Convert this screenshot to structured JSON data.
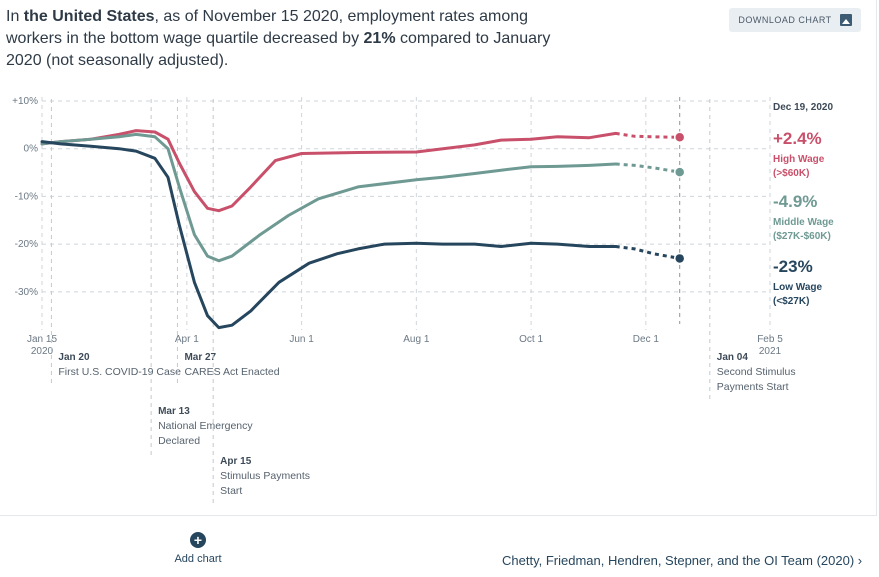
{
  "headline": {
    "prefix": "In ",
    "region": "the United States",
    "middle": ", as of November 15 2020, employment rates among workers in the bottom wage quartile decreased by ",
    "change": "21%",
    "suffix": " compared to January 2020 (not seasonally adjusted)."
  },
  "download_button": {
    "label": "DOWNLOAD CHART",
    "icon": "image-icon"
  },
  "chart_data": {
    "type": "line",
    "x_ticks": [
      {
        "date": "2020-01-15",
        "label": "Jan 15",
        "sub": "2020"
      },
      {
        "date": "2020-04-01",
        "label": "Apr 1",
        "sub": ""
      },
      {
        "date": "2020-06-01",
        "label": "Jun 1",
        "sub": ""
      },
      {
        "date": "2020-08-01",
        "label": "Aug 1",
        "sub": ""
      },
      {
        "date": "2020-10-01",
        "label": "Oct 1",
        "sub": ""
      },
      {
        "date": "2020-12-01",
        "label": "Dec 1",
        "sub": ""
      },
      {
        "date": "2021-02-05",
        "label": "Feb 5",
        "sub": "2021"
      }
    ],
    "y_ticks": [
      {
        "value": 10,
        "label": "+10%"
      },
      {
        "value": 0,
        "label": "0%"
      },
      {
        "value": -10,
        "label": "-10%"
      },
      {
        "value": -20,
        "label": "-20%"
      },
      {
        "value": -30,
        "label": "-30%"
      }
    ],
    "ylim": [
      -38,
      10
    ],
    "xlim": [
      "2020-01-15",
      "2021-02-05"
    ],
    "end_date_label": "Dec 19, 2020",
    "end_date": "2020-12-19",
    "series": [
      {
        "name": "High Wage",
        "detail": "(>$60K)",
        "end_value_label": "+2.4%",
        "color": "#c9506a",
        "points": [
          [
            "2020-01-15",
            1
          ],
          [
            "2020-01-25",
            1.5
          ],
          [
            "2020-02-10",
            2
          ],
          [
            "2020-02-25",
            3
          ],
          [
            "2020-03-05",
            3.8
          ],
          [
            "2020-03-15",
            3.5
          ],
          [
            "2020-03-22",
            2
          ],
          [
            "2020-03-28",
            -3
          ],
          [
            "2020-04-05",
            -9
          ],
          [
            "2020-04-12",
            -12.5
          ],
          [
            "2020-04-18",
            -13
          ],
          [
            "2020-04-25",
            -12
          ],
          [
            "2020-05-05",
            -8
          ],
          [
            "2020-05-18",
            -2.5
          ],
          [
            "2020-06-01",
            -1
          ],
          [
            "2020-07-01",
            -0.8
          ],
          [
            "2020-08-01",
            -0.7
          ],
          [
            "2020-09-01",
            0.8
          ],
          [
            "2020-09-15",
            1.8
          ],
          [
            "2020-10-01",
            2
          ],
          [
            "2020-10-15",
            2.5
          ],
          [
            "2020-11-01",
            2.3
          ],
          [
            "2020-11-15",
            3.2
          ]
        ],
        "projected": [
          [
            "2020-11-15",
            3.2
          ],
          [
            "2020-11-25",
            2.6
          ],
          [
            "2020-12-05",
            2.5
          ],
          [
            "2020-12-19",
            2.4
          ]
        ]
      },
      {
        "name": "Middle Wage",
        "detail": "($27K-$60K)",
        "end_value_label": "-4.9%",
        "color": "#6f9a93",
        "points": [
          [
            "2020-01-15",
            1
          ],
          [
            "2020-01-25",
            1.5
          ],
          [
            "2020-02-10",
            2
          ],
          [
            "2020-02-25",
            2.5
          ],
          [
            "2020-03-05",
            3
          ],
          [
            "2020-03-15",
            2.5
          ],
          [
            "2020-03-22",
            0
          ],
          [
            "2020-03-28",
            -8
          ],
          [
            "2020-04-05",
            -18
          ],
          [
            "2020-04-12",
            -22.5
          ],
          [
            "2020-04-18",
            -23.5
          ],
          [
            "2020-04-25",
            -22.5
          ],
          [
            "2020-05-10",
            -18
          ],
          [
            "2020-05-25",
            -14
          ],
          [
            "2020-06-10",
            -10.5
          ],
          [
            "2020-07-01",
            -8
          ],
          [
            "2020-08-01",
            -6.5
          ],
          [
            "2020-08-15",
            -6
          ],
          [
            "2020-09-01",
            -5.2
          ],
          [
            "2020-09-15",
            -4.5
          ],
          [
            "2020-10-01",
            -3.8
          ],
          [
            "2020-10-15",
            -3.7
          ],
          [
            "2020-11-01",
            -3.5
          ],
          [
            "2020-11-15",
            -3.2
          ]
        ],
        "projected": [
          [
            "2020-11-15",
            -3.2
          ],
          [
            "2020-11-25",
            -3.5
          ],
          [
            "2020-12-05",
            -4
          ],
          [
            "2020-12-19",
            -4.9
          ]
        ]
      },
      {
        "name": "Low Wage",
        "detail": "(<$27K)",
        "end_value_label": "-23%",
        "color": "#26465e",
        "points": [
          [
            "2020-01-15",
            1.5
          ],
          [
            "2020-01-25",
            1
          ],
          [
            "2020-02-10",
            0.5
          ],
          [
            "2020-02-25",
            0
          ],
          [
            "2020-03-05",
            -0.5
          ],
          [
            "2020-03-15",
            -2
          ],
          [
            "2020-03-22",
            -6
          ],
          [
            "2020-03-28",
            -16
          ],
          [
            "2020-04-05",
            -28
          ],
          [
            "2020-04-12",
            -35
          ],
          [
            "2020-04-18",
            -37.5
          ],
          [
            "2020-04-25",
            -37
          ],
          [
            "2020-05-05",
            -34
          ],
          [
            "2020-05-20",
            -28
          ],
          [
            "2020-06-05",
            -24
          ],
          [
            "2020-06-20",
            -22
          ],
          [
            "2020-07-01",
            -21
          ],
          [
            "2020-07-15",
            -20
          ],
          [
            "2020-08-01",
            -19.8
          ],
          [
            "2020-08-15",
            -20
          ],
          [
            "2020-09-01",
            -20
          ],
          [
            "2020-09-15",
            -20.5
          ],
          [
            "2020-10-01",
            -19.8
          ],
          [
            "2020-10-15",
            -20
          ],
          [
            "2020-11-01",
            -20.5
          ],
          [
            "2020-11-15",
            -20.5
          ]
        ],
        "projected": [
          [
            "2020-11-15",
            -20.5
          ],
          [
            "2020-11-25",
            -21
          ],
          [
            "2020-12-05",
            -22
          ],
          [
            "2020-12-19",
            -23
          ]
        ]
      }
    ],
    "events": [
      {
        "date": "2020-01-20",
        "title": "Jan 20",
        "text": [
          "First U.S. COVID-19 Case"
        ],
        "row": 0
      },
      {
        "date": "2020-03-13",
        "title": "Mar 13",
        "text": [
          "National Emergency",
          "Declared"
        ],
        "row": 1
      },
      {
        "date": "2020-03-27",
        "title": "Mar 27",
        "text": [
          "CARES Act Enacted"
        ],
        "row": 0
      },
      {
        "date": "2020-04-15",
        "title": "Apr 15",
        "text": [
          "Stimulus Payments",
          "Start"
        ],
        "row": 2
      },
      {
        "date": "2021-01-04",
        "title": "Jan 04",
        "text": [
          "Second Stimulus",
          "Payments Start"
        ],
        "row": 0
      }
    ]
  },
  "add_chart": {
    "label": "Add chart",
    "icon": "plus-circle-icon"
  },
  "citation": {
    "text": "Chetty, Friedman, Hendren, Stepner, and the OI Team (2020)",
    "icon": "chevron-right-icon"
  }
}
